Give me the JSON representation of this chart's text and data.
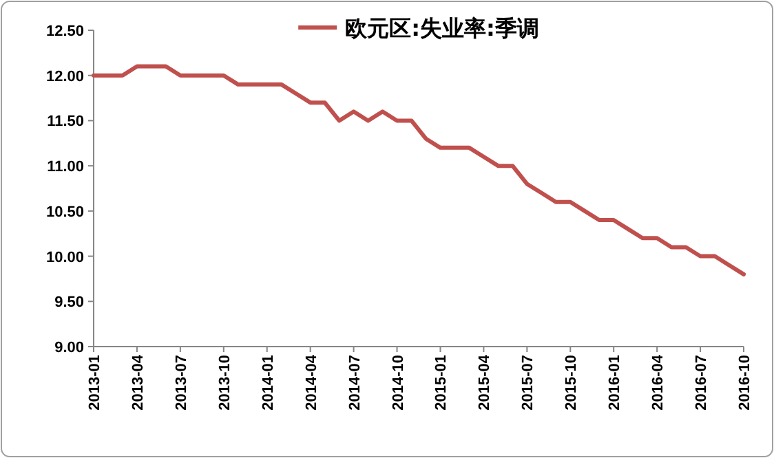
{
  "chart_data": {
    "type": "line",
    "categories": [
      "2013-01",
      null,
      null,
      "2013-04",
      null,
      null,
      "2013-07",
      null,
      null,
      "2013-10",
      null,
      null,
      "2014-01",
      null,
      null,
      "2014-04",
      null,
      null,
      "2014-07",
      null,
      null,
      "2014-10",
      null,
      null,
      "2015-01",
      null,
      null,
      "2015-04",
      null,
      null,
      "2015-07",
      null,
      null,
      "2015-10",
      null,
      null,
      "2016-01",
      null,
      null,
      "2016-04",
      null,
      null,
      "2016-07",
      null,
      null,
      "2016-10"
    ],
    "series": [
      {
        "name": "欧元区:失业率:季调",
        "color": "#c0504d",
        "values": [
          12.0,
          12.0,
          12.0,
          12.1,
          12.1,
          12.1,
          12.0,
          12.0,
          12.0,
          12.0,
          11.9,
          11.9,
          11.9,
          11.9,
          11.8,
          11.7,
          11.7,
          11.5,
          11.6,
          11.5,
          11.6,
          11.5,
          11.5,
          11.3,
          11.2,
          11.2,
          11.2,
          11.1,
          11.0,
          11.0,
          10.8,
          10.7,
          10.6,
          10.6,
          10.5,
          10.4,
          10.4,
          10.3,
          10.2,
          10.2,
          10.1,
          10.1,
          10.0,
          10.0,
          9.9,
          9.8
        ]
      }
    ],
    "ylim": [
      9.0,
      12.5
    ],
    "yticks": [
      {
        "value": 9.0,
        "label": "9.00"
      },
      {
        "value": 9.5,
        "label": "9.50"
      },
      {
        "value": 10.0,
        "label": "10.00"
      },
      {
        "value": 10.5,
        "label": "10.50"
      },
      {
        "value": 11.0,
        "label": "11.00"
      },
      {
        "value": 11.5,
        "label": "11.50"
      },
      {
        "value": 12.0,
        "label": "12.00"
      },
      {
        "value": 12.5,
        "label": "12.50"
      }
    ],
    "legend": "top",
    "grid": false,
    "marker": "none",
    "line_style": "solid"
  }
}
